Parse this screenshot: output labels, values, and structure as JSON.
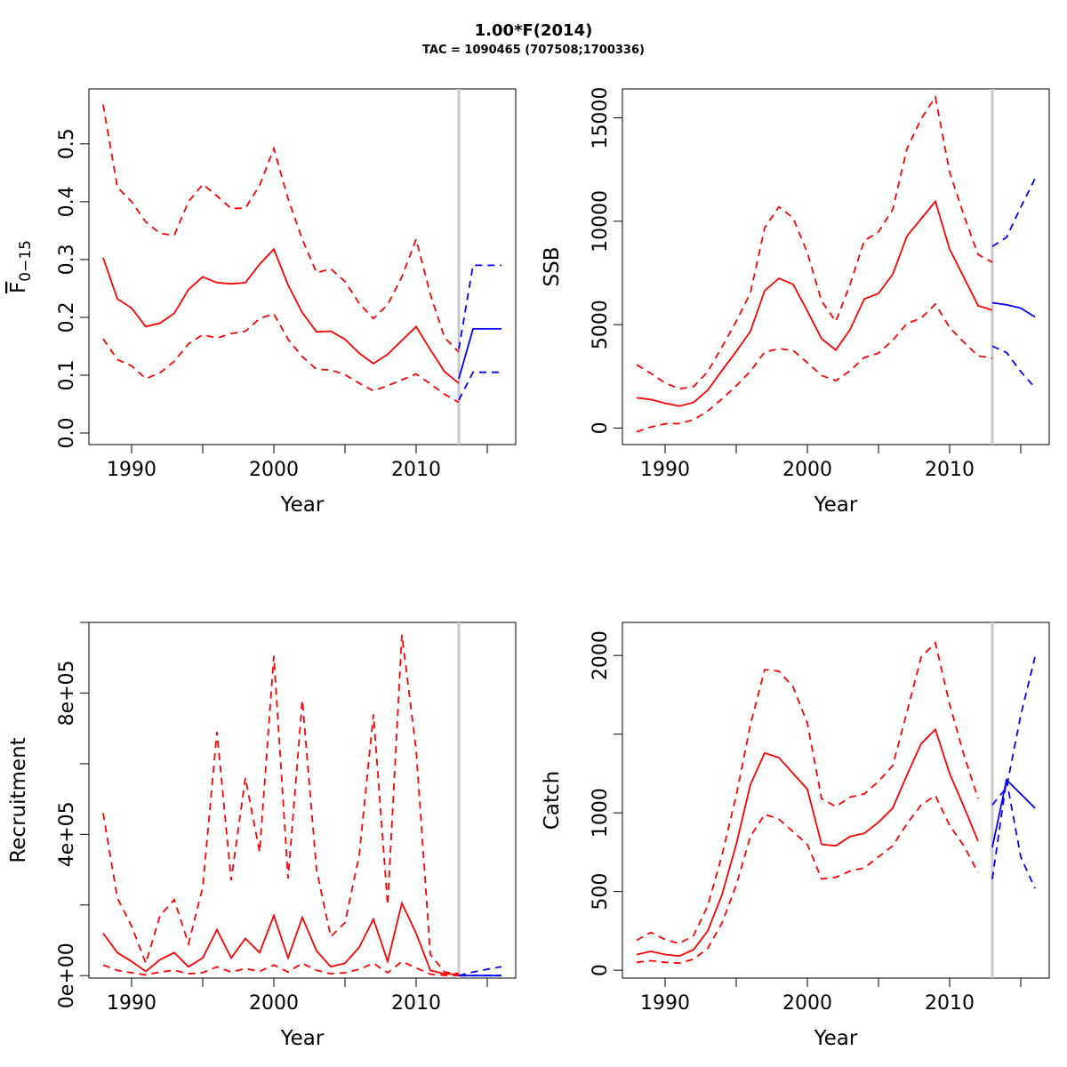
{
  "figure": {
    "title": "1.00*F(2014)",
    "subtitle": "TAC = 1090465 (707508;1700336)"
  },
  "colors": {
    "estimate": "#ff0000",
    "forecast": "#0000ff",
    "divider": "#c8c8c8",
    "axis": "#000000"
  },
  "chart_data": [
    {
      "type": "line",
      "xlabel": "Year",
      "ylabel_main": "F",
      "ylabel_sub": "0−15",
      "xlim": [
        1987,
        2017
      ],
      "ylim": [
        -0.02,
        0.595
      ],
      "xticks": [
        1990,
        1995,
        2000,
        2005,
        2010,
        2015
      ],
      "xtick_labels": [
        "1990",
        "",
        "2000",
        "",
        "2010",
        ""
      ],
      "yticks": [
        0,
        0.1,
        0.2,
        0.3,
        0.4,
        0.5
      ],
      "ytick_labels": [
        "0.0",
        "0.1",
        "0.2",
        "0.3",
        "0.4",
        "0.5"
      ],
      "divider_x": 2013,
      "series": [
        {
          "role": "estimate",
          "style": "solid",
          "x": [
            1988,
            1989,
            1990,
            1991,
            1992,
            1993,
            1994,
            1995,
            1996,
            1997,
            1998,
            1999,
            2000,
            2001,
            2002,
            2003,
            2004,
            2005,
            2006,
            2007,
            2008,
            2009,
            2010,
            2011,
            2012,
            2013
          ],
          "values": [
            0.303,
            0.232,
            0.216,
            0.184,
            0.19,
            0.207,
            0.248,
            0.27,
            0.26,
            0.258,
            0.26,
            0.292,
            0.318,
            0.256,
            0.208,
            0.175,
            0.176,
            0.162,
            0.138,
            0.12,
            0.136,
            0.16,
            0.184,
            0.144,
            0.106,
            0.086
          ]
        },
        {
          "role": "estimate",
          "style": "dashed",
          "x": [
            1988,
            1989,
            1990,
            1991,
            1992,
            1993,
            1994,
            1995,
            1996,
            1997,
            1998,
            1999,
            2000,
            2001,
            2002,
            2003,
            2004,
            2005,
            2006,
            2007,
            2008,
            2009,
            2010,
            2011,
            2012,
            2013
          ],
          "values": [
            0.568,
            0.425,
            0.4,
            0.365,
            0.345,
            0.342,
            0.4,
            0.43,
            0.41,
            0.388,
            0.389,
            0.428,
            0.492,
            0.405,
            0.335,
            0.277,
            0.284,
            0.262,
            0.224,
            0.198,
            0.222,
            0.27,
            0.335,
            0.24,
            0.165,
            0.14
          ]
        },
        {
          "role": "estimate",
          "style": "dashed",
          "x": [
            1988,
            1989,
            1990,
            1991,
            1992,
            1993,
            1994,
            1995,
            1996,
            1997,
            1998,
            1999,
            2000,
            2001,
            2002,
            2003,
            2004,
            2005,
            2006,
            2007,
            2008,
            2009,
            2010,
            2011,
            2012,
            2013
          ],
          "values": [
            0.163,
            0.127,
            0.116,
            0.094,
            0.104,
            0.124,
            0.154,
            0.17,
            0.164,
            0.172,
            0.176,
            0.198,
            0.206,
            0.162,
            0.132,
            0.11,
            0.109,
            0.101,
            0.086,
            0.073,
            0.082,
            0.092,
            0.102,
            0.085,
            0.067,
            0.053
          ]
        },
        {
          "role": "forecast",
          "style": "solid",
          "x": [
            2013,
            2014,
            2015,
            2016
          ],
          "values": [
            0.094,
            0.18,
            0.18,
            0.18
          ]
        },
        {
          "role": "forecast",
          "style": "dashed",
          "x": [
            2013,
            2014,
            2015,
            2016
          ],
          "values": [
            0.145,
            0.29,
            0.29,
            0.29
          ]
        },
        {
          "role": "forecast",
          "style": "dashed",
          "x": [
            2013,
            2014,
            2015,
            2016
          ],
          "values": [
            0.057,
            0.105,
            0.105,
            0.105
          ]
        }
      ]
    },
    {
      "type": "line",
      "xlabel": "Year",
      "ylabel": "SSB",
      "xlim": [
        1987,
        2017
      ],
      "ylim": [
        -800,
        16400
      ],
      "xticks": [
        1990,
        1995,
        2000,
        2005,
        2010,
        2015
      ],
      "xtick_labels": [
        "1990",
        "",
        "2000",
        "",
        "2010",
        ""
      ],
      "yticks": [
        0,
        5000,
        10000,
        15000
      ],
      "ytick_labels": [
        "0",
        "5000",
        "10000",
        "15000"
      ],
      "divider_x": 2013,
      "series": [
        {
          "role": "estimate",
          "style": "solid",
          "x": [
            1988,
            1989,
            1990,
            1991,
            1992,
            1993,
            1994,
            1995,
            1996,
            1997,
            1998,
            1999,
            2000,
            2001,
            2002,
            2003,
            2004,
            2005,
            2006,
            2007,
            2008,
            2009,
            2010,
            2011,
            2012,
            2013
          ],
          "values": [
            1460,
            1380,
            1200,
            1060,
            1240,
            1830,
            2780,
            3700,
            4680,
            6640,
            7240,
            6950,
            5660,
            4320,
            3770,
            4760,
            6240,
            6510,
            7430,
            9280,
            10120,
            10960,
            8650,
            7290,
            5920,
            5700
          ]
        },
        {
          "role": "estimate",
          "style": "dashed",
          "x": [
            1988,
            1989,
            1990,
            1991,
            1992,
            1993,
            1994,
            1995,
            1996,
            1997,
            1998,
            1999,
            2000,
            2001,
            2002,
            2003,
            2004,
            2005,
            2006,
            2007,
            2008,
            2009,
            2010,
            2011,
            2012,
            2013
          ],
          "values": [
            3060,
            2640,
            2180,
            1900,
            2000,
            2720,
            3920,
            5160,
            6540,
            9680,
            10700,
            10160,
            8480,
            6140,
            5150,
            6940,
            9060,
            9480,
            10570,
            13500,
            14950,
            16010,
            12370,
            10290,
            8390,
            8020
          ]
        },
        {
          "role": "estimate",
          "style": "dashed",
          "x": [
            1988,
            1989,
            1990,
            1991,
            1992,
            1993,
            1994,
            1995,
            1996,
            1997,
            1998,
            1999,
            2000,
            2001,
            2002,
            2003,
            2004,
            2005,
            2006,
            2007,
            2008,
            2009,
            2010,
            2011,
            2012,
            2013
          ],
          "values": [
            -180,
            50,
            200,
            220,
            400,
            820,
            1410,
            2040,
            2750,
            3670,
            3840,
            3750,
            3160,
            2540,
            2290,
            2770,
            3410,
            3620,
            4250,
            5050,
            5320,
            5990,
            4860,
            4150,
            3490,
            3380
          ]
        },
        {
          "role": "forecast",
          "style": "solid",
          "x": [
            2013,
            2014,
            2015,
            2016
          ],
          "values": [
            6060,
            5960,
            5800,
            5370
          ]
        },
        {
          "role": "forecast",
          "style": "dashed",
          "x": [
            2013,
            2014,
            2015,
            2016
          ],
          "values": [
            8780,
            9220,
            10680,
            12060
          ]
        },
        {
          "role": "forecast",
          "style": "dashed",
          "x": [
            2013,
            2014,
            2015,
            2016
          ],
          "values": [
            3960,
            3650,
            2730,
            1950
          ]
        }
      ]
    },
    {
      "type": "line",
      "xlabel": "Year",
      "ylabel": "Recruitment",
      "xlim": [
        1987,
        2017
      ],
      "ylim": [
        -7000,
        1000000
      ],
      "xticks": [
        1990,
        1995,
        2000,
        2005,
        2010,
        2015
      ],
      "xtick_labels": [
        "1990",
        "",
        "2000",
        "",
        "2010",
        ""
      ],
      "yticks": [
        0,
        200000,
        400000,
        600000,
        800000,
        1000000
      ],
      "ytick_labels": [
        "0e+00",
        "",
        "4e+05",
        "",
        "8e+05",
        ""
      ],
      "divider_x": 2013,
      "series": [
        {
          "role": "estimate",
          "style": "solid",
          "x": [
            1988,
            1989,
            1990,
            1991,
            1992,
            1993,
            1994,
            1995,
            1996,
            1997,
            1998,
            1999,
            2000,
            2001,
            2002,
            2003,
            2004,
            2005,
            2006,
            2007,
            2008,
            2009,
            2010,
            2011,
            2012,
            2013
          ],
          "values": [
            120000,
            65000,
            40000,
            12000,
            45000,
            65000,
            25000,
            50000,
            130000,
            50000,
            105000,
            65000,
            170000,
            50000,
            165000,
            70000,
            25000,
            35000,
            80000,
            160000,
            40000,
            205000,
            120000,
            15000,
            5000,
            3000
          ]
        },
        {
          "role": "estimate",
          "style": "dashed",
          "x": [
            1988,
            1989,
            1990,
            1991,
            1992,
            1993,
            1994,
            1995,
            1996,
            1997,
            1998,
            1999,
            2000,
            2001,
            2002,
            2003,
            2004,
            2005,
            2006,
            2007,
            2008,
            2009,
            2010,
            2011,
            2012,
            2013
          ],
          "values": [
            460000,
            220000,
            140000,
            35000,
            170000,
            215000,
            90000,
            250000,
            690000,
            270000,
            560000,
            350000,
            905000,
            275000,
            780000,
            300000,
            110000,
            150000,
            340000,
            740000,
            200000,
            965000,
            640000,
            60000,
            10000,
            5000
          ]
        },
        {
          "role": "estimate",
          "style": "dashed",
          "x": [
            1988,
            1989,
            1990,
            1991,
            1992,
            1993,
            1994,
            1995,
            1996,
            1997,
            1998,
            1999,
            2000,
            2001,
            2002,
            2003,
            2004,
            2005,
            2006,
            2007,
            2008,
            2009,
            2010,
            2011,
            2012,
            2013
          ],
          "values": [
            30000,
            15000,
            8000,
            2000,
            10000,
            15000,
            5000,
            8000,
            25000,
            10000,
            20000,
            12000,
            30000,
            10000,
            35000,
            15000,
            5000,
            8000,
            18000,
            35000,
            8000,
            40000,
            22000,
            4000,
            1000,
            500
          ]
        },
        {
          "role": "forecast",
          "style": "solid",
          "x": [
            2013,
            2014,
            2015,
            2016
          ],
          "values": [
            0,
            0,
            0,
            0
          ]
        },
        {
          "role": "forecast",
          "style": "dashed",
          "x": [
            2013,
            2014,
            2015,
            2016
          ],
          "values": [
            0,
            10000,
            18000,
            25000
          ]
        },
        {
          "role": "forecast",
          "style": "dashed",
          "x": [
            2013,
            2014,
            2015,
            2016
          ],
          "values": [
            0,
            0,
            0,
            0
          ]
        }
      ]
    },
    {
      "type": "line",
      "xlabel": "Year",
      "ylabel": "Catch",
      "xlim": [
        1987,
        2017
      ],
      "ylim": [
        -50,
        2210
      ],
      "xticks": [
        1990,
        1995,
        2000,
        2005,
        2010,
        2015
      ],
      "xtick_labels": [
        "1990",
        "",
        "2000",
        "",
        "2010",
        ""
      ],
      "yticks": [
        0,
        500,
        1000,
        1500,
        2000
      ],
      "ytick_labels": [
        "0",
        "500",
        "1000",
        "",
        "2000"
      ],
      "divider_x": 2013,
      "series": [
        {
          "role": "estimate",
          "style": "solid",
          "x": [
            1988,
            1989,
            1990,
            1991,
            1992,
            1993,
            1994,
            1995,
            1996,
            1997,
            1998,
            1999,
            2000,
            2001,
            2002,
            2003,
            2004,
            2005,
            2006,
            2007,
            2008,
            2009,
            2010,
            2011,
            2012
          ],
          "values": [
            100,
            120,
            100,
            90,
            130,
            250,
            480,
            800,
            1180,
            1380,
            1350,
            1250,
            1150,
            800,
            790,
            850,
            870,
            940,
            1030,
            1240,
            1440,
            1530,
            1250,
            1040,
            820
          ]
        },
        {
          "role": "estimate",
          "style": "dashed",
          "x": [
            1988,
            1989,
            1990,
            1991,
            1992,
            1993,
            1994,
            1995,
            1996,
            1997,
            1998,
            1999,
            2000,
            2001,
            2002,
            2003,
            2004,
            2005,
            2006,
            2007,
            2008,
            2009,
            2010,
            2011,
            2012
          ],
          "values": [
            190,
            240,
            195,
            170,
            220,
            410,
            730,
            1110,
            1560,
            1910,
            1900,
            1800,
            1570,
            1090,
            1040,
            1100,
            1120,
            1200,
            1300,
            1640,
            1990,
            2080,
            1690,
            1370,
            1090
          ]
        },
        {
          "role": "estimate",
          "style": "dashed",
          "x": [
            1988,
            1989,
            1990,
            1991,
            1992,
            1993,
            1994,
            1995,
            1996,
            1997,
            1998,
            1999,
            2000,
            2001,
            2002,
            2003,
            2004,
            2005,
            2006,
            2007,
            2008,
            2009,
            2010,
            2011,
            2012
          ],
          "values": [
            50,
            60,
            50,
            45,
            70,
            140,
            300,
            540,
            850,
            990,
            960,
            880,
            800,
            580,
            590,
            630,
            650,
            720,
            790,
            930,
            1050,
            1110,
            920,
            790,
            620
          ]
        },
        {
          "role": "forecast",
          "style": "solid",
          "x": [
            2013,
            2014,
            2015,
            2016
          ],
          "values": [
            780,
            1210,
            1120,
            1030
          ]
        },
        {
          "role": "forecast",
          "style": "dashed",
          "x": [
            2013,
            2014,
            2015,
            2016
          ],
          "values": [
            1050,
            1160,
            1620,
            1990
          ]
        },
        {
          "role": "forecast",
          "style": "dashed",
          "x": [
            2013,
            2014,
            2015,
            2016
          ],
          "values": [
            580,
            1210,
            720,
            520
          ]
        }
      ]
    }
  ]
}
